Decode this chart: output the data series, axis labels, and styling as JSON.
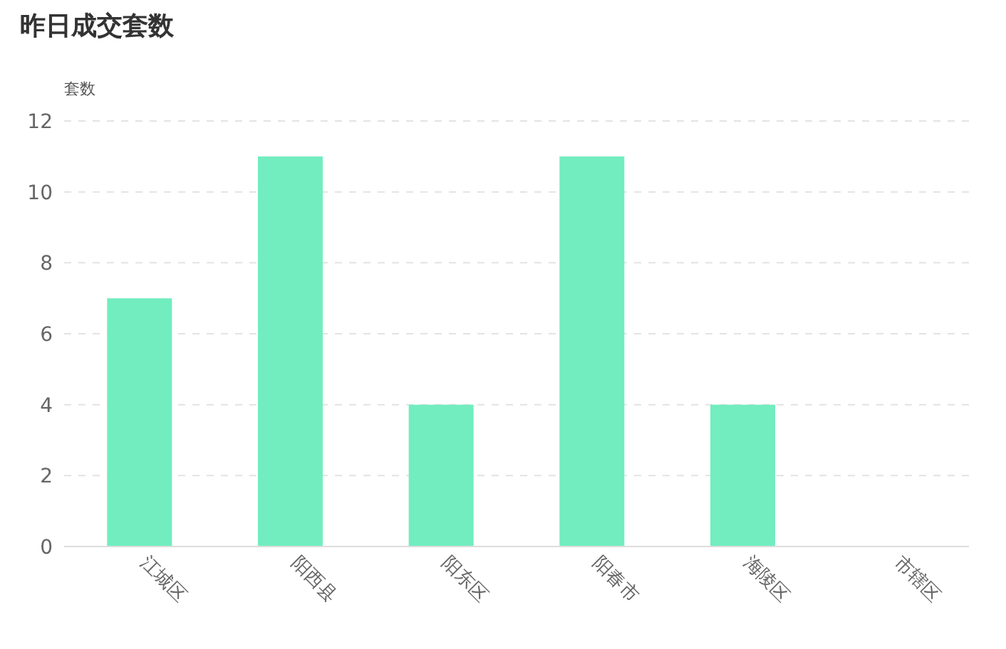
{
  "chart_data": {
    "type": "bar",
    "title": "昨日成交套数",
    "ylabel": "套数",
    "categories": [
      "江城区",
      "阳西县",
      "阳东区",
      "阳春市",
      "海陵区",
      "市辖区"
    ],
    "values": [
      7,
      11,
      4,
      11,
      4,
      0
    ],
    "color": "#72edbf",
    "ylim": [
      0,
      12
    ],
    "yticks": [
      0,
      2,
      4,
      6,
      8,
      10,
      12
    ],
    "grid": "y"
  }
}
